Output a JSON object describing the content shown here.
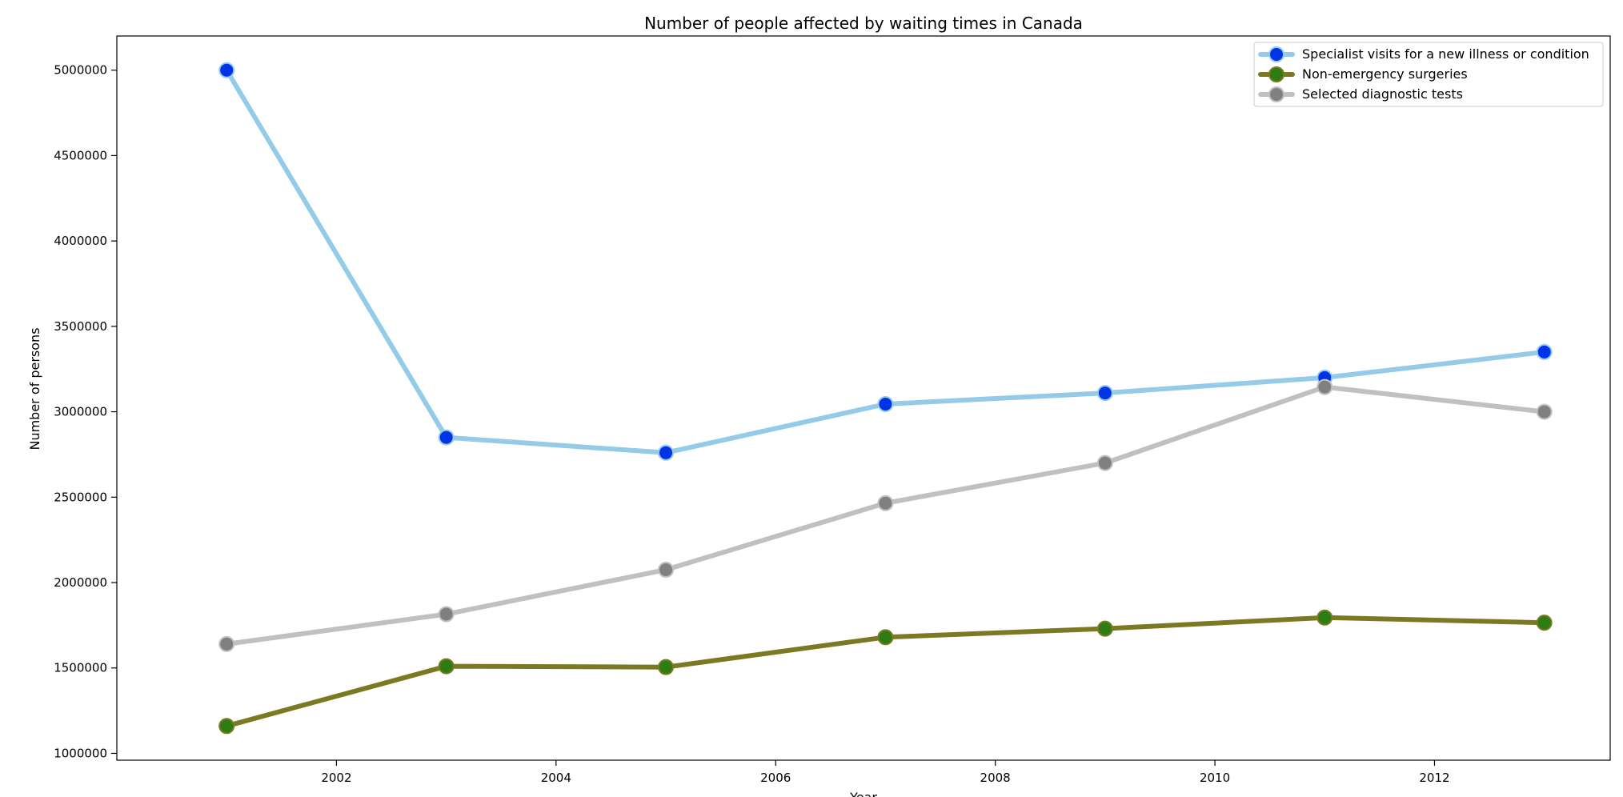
{
  "chart_data": {
    "type": "line",
    "title": "Number of people affected by waiting times in Canada",
    "xlabel": "Year",
    "ylabel": "Number of persons",
    "x": [
      2001,
      2003,
      2005,
      2007,
      2009,
      2011,
      2013
    ],
    "xlim": [
      2000,
      2013.6
    ],
    "ylim": [
      960000,
      5200000
    ],
    "xticks": [
      2002,
      2004,
      2006,
      2008,
      2010,
      2012
    ],
    "yticks": [
      1000000,
      1500000,
      2000000,
      2500000,
      3000000,
      3500000,
      4000000,
      4500000,
      5000000
    ],
    "grid": false,
    "legend_position": "top-right",
    "series": [
      {
        "name": "Specialist visits for a new illness or condition",
        "values": [
          5000000,
          2850000,
          2760000,
          3045000,
          3110000,
          3200000,
          3350000
        ],
        "line_color": "#93cbe8",
        "marker_color": "#0033e6"
      },
      {
        "name": "Non-emergency surgeries",
        "values": [
          1160000,
          1510000,
          1505000,
          1680000,
          1730000,
          1795000,
          1765000
        ],
        "line_color": "#7b7a23",
        "marker_color": "#2e7d14"
      },
      {
        "name": "Selected diagnostic tests",
        "values": [
          1640000,
          1815000,
          2075000,
          2465000,
          2700000,
          3145000,
          3000000
        ],
        "line_color": "#c0c0c0",
        "marker_color": "#808080"
      }
    ]
  }
}
